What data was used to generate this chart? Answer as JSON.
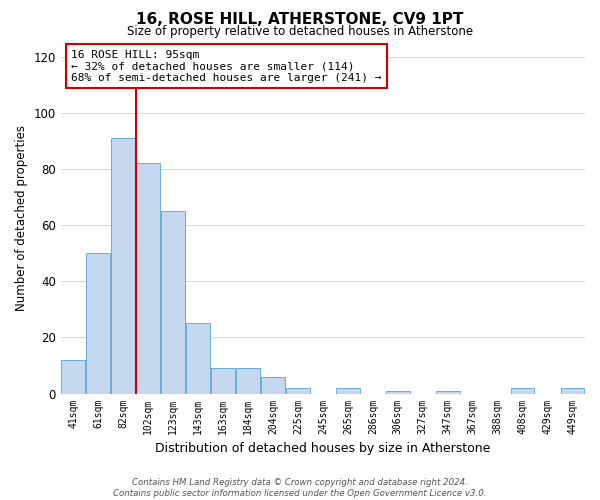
{
  "title": "16, ROSE HILL, ATHERSTONE, CV9 1PT",
  "subtitle": "Size of property relative to detached houses in Atherstone",
  "xlabel": "Distribution of detached houses by size in Atherstone",
  "ylabel": "Number of detached properties",
  "bar_labels": [
    "41sqm",
    "61sqm",
    "82sqm",
    "102sqm",
    "123sqm",
    "143sqm",
    "163sqm",
    "184sqm",
    "204sqm",
    "225sqm",
    "245sqm",
    "265sqm",
    "286sqm",
    "306sqm",
    "327sqm",
    "347sqm",
    "367sqm",
    "388sqm",
    "408sqm",
    "429sqm",
    "449sqm"
  ],
  "bar_values": [
    12,
    50,
    91,
    82,
    65,
    25,
    9,
    9,
    6,
    2,
    0,
    2,
    0,
    1,
    0,
    1,
    0,
    0,
    2,
    0,
    2
  ],
  "bar_color": "#c5d8f0",
  "bar_edge_color": "#6baed6",
  "vline_color": "#cc0000",
  "annotation_text": "16 ROSE HILL: 95sqm\n← 32% of detached houses are smaller (114)\n68% of semi-detached houses are larger (241) →",
  "annotation_box_color": "#ffffff",
  "annotation_box_edge": "#cc0000",
  "ylim": [
    0,
    125
  ],
  "yticks": [
    0,
    20,
    40,
    60,
    80,
    100,
    120
  ],
  "background_color": "#ffffff",
  "grid_color": "#d0d8e8",
  "footer_line1": "Contains HM Land Registry data © Crown copyright and database right 2024.",
  "footer_line2": "Contains public sector information licensed under the Open Government Licence v3.0."
}
